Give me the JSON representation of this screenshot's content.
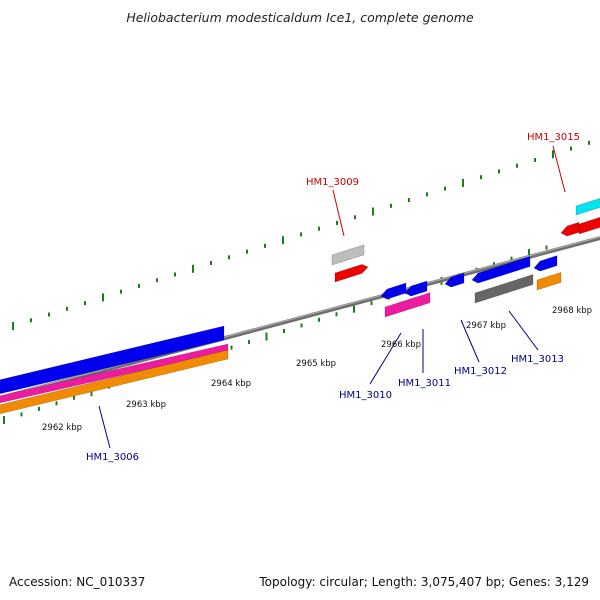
{
  "title": "Heliobacterium modesticaldum Ice1, complete genome",
  "footer": {
    "accession": "Accession: NC_010337",
    "summary": "Topology: circular; Length: 3,075,407 bp; Genes: 3,129"
  },
  "colors": {
    "background": "#ffffff",
    "backbone": "#8c8c8c",
    "tick": "#1a7f1a",
    "label_red": "#cc0000",
    "label_blue": "#00008b",
    "blue": "#0000ee",
    "magenta": "#ee1aa0",
    "orange": "#f08a00",
    "red": "#ee0000",
    "cyan": "#00e5ee",
    "gray_dark": "#666666",
    "gray_light": "#bdbdbd"
  },
  "tick_labels": [
    {
      "id": "2962",
      "text": "2962 kbp"
    },
    {
      "id": "2963",
      "text": "2963 kbp"
    },
    {
      "id": "2964",
      "text": "2964 kbp"
    },
    {
      "id": "2965",
      "text": "2965 kbp"
    },
    {
      "id": "2966",
      "text": "2966 kbp"
    },
    {
      "id": "2967",
      "text": "2967 kbp"
    },
    {
      "id": "2968",
      "text": "2968 kbp"
    }
  ],
  "gene_labels": [
    {
      "id": "HM1_3015",
      "text": "HM1_3015",
      "color": "red"
    },
    {
      "id": "HM1_3009",
      "text": "HM1_3009",
      "color": "red"
    },
    {
      "id": "HM1_3010",
      "text": "HM1_3010",
      "color": "blue"
    },
    {
      "id": "HM1_3011",
      "text": "HM1_3011",
      "color": "blue"
    },
    {
      "id": "HM1_3012",
      "text": "HM1_3012",
      "color": "blue"
    },
    {
      "id": "HM1_3013",
      "text": "HM1_3013",
      "color": "blue"
    },
    {
      "id": "HM1_3006",
      "text": "HM1_3006",
      "color": "blue"
    }
  ]
}
